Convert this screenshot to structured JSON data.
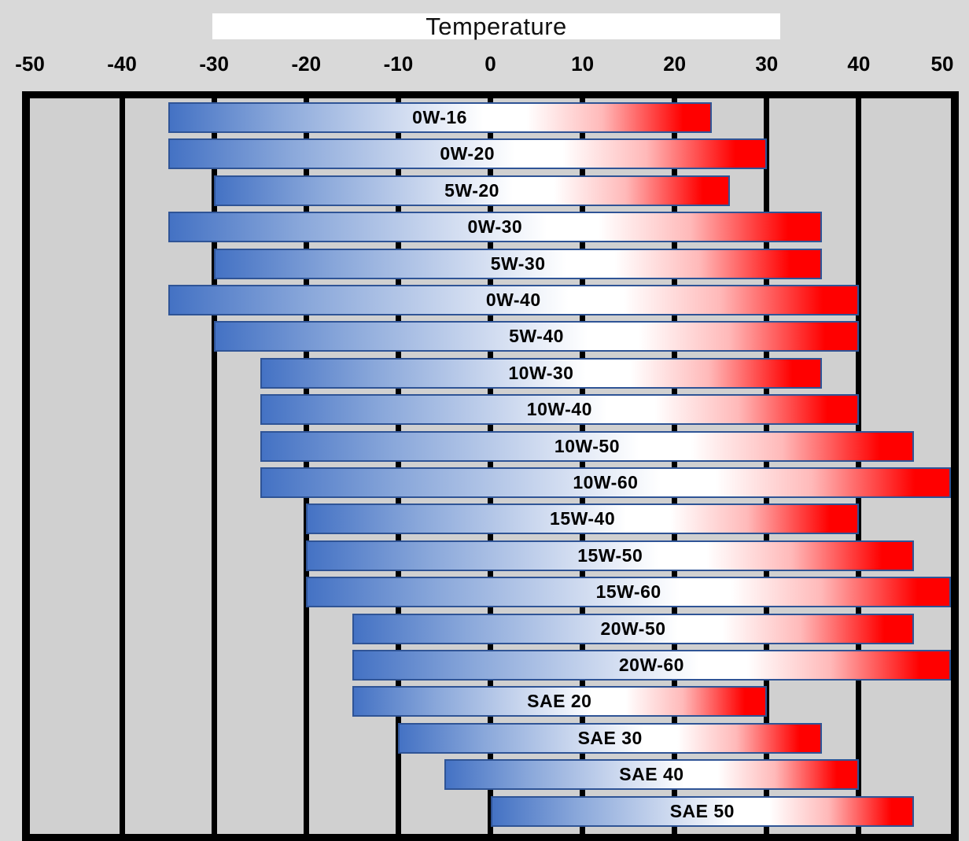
{
  "title_band": {
    "label": "Temperature"
  },
  "colors": {
    "page_bg": "#d9d9d9",
    "plot_bg": "#d0d0d0",
    "border": "#000000",
    "gridline": "#000000",
    "title_bg": "#ffffff",
    "text": "#000000",
    "bar_border": "#2f5496",
    "bar_blue": "#4472c4",
    "bar_white": "#ffffff",
    "bar_red": "#ff0000"
  },
  "chart_data": {
    "type": "bar",
    "orientation": "horizontal",
    "subtype": "temperature-range-bars",
    "title": "Temperature",
    "xlabel": "Temperature",
    "xlim": [
      -50,
      50
    ],
    "x_ticks": [
      -50,
      -40,
      -30,
      -20,
      -10,
      0,
      10,
      20,
      30,
      40,
      50
    ],
    "grid": true,
    "legend": false,
    "series": [
      {
        "name": "0W-16",
        "min": -35,
        "max": 24
      },
      {
        "name": "0W-20",
        "min": -35,
        "max": 30
      },
      {
        "name": "5W-20",
        "min": -30,
        "max": 26
      },
      {
        "name": "0W-30",
        "min": -35,
        "max": 36
      },
      {
        "name": "5W-30",
        "min": -30,
        "max": 36
      },
      {
        "name": "0W-40",
        "min": -35,
        "max": 40
      },
      {
        "name": "5W-40",
        "min": -30,
        "max": 40
      },
      {
        "name": "10W-30",
        "min": -25,
        "max": 36
      },
      {
        "name": "10W-40",
        "min": -25,
        "max": 40
      },
      {
        "name": "10W-50",
        "min": -25,
        "max": 46
      },
      {
        "name": "10W-60",
        "min": -25,
        "max": 50
      },
      {
        "name": "15W-40",
        "min": -20,
        "max": 40
      },
      {
        "name": "15W-50",
        "min": -20,
        "max": 46
      },
      {
        "name": "15W-60",
        "min": -20,
        "max": 50
      },
      {
        "name": "20W-50",
        "min": -15,
        "max": 46
      },
      {
        "name": "20W-60",
        "min": -15,
        "max": 50
      },
      {
        "name": "SAE 20",
        "min": -15,
        "max": 30
      },
      {
        "name": "SAE 30",
        "min": -10,
        "max": 36
      },
      {
        "name": "SAE 40",
        "min": -5,
        "max": 40
      },
      {
        "name": "SAE 50",
        "min": 0,
        "max": 46
      }
    ]
  }
}
